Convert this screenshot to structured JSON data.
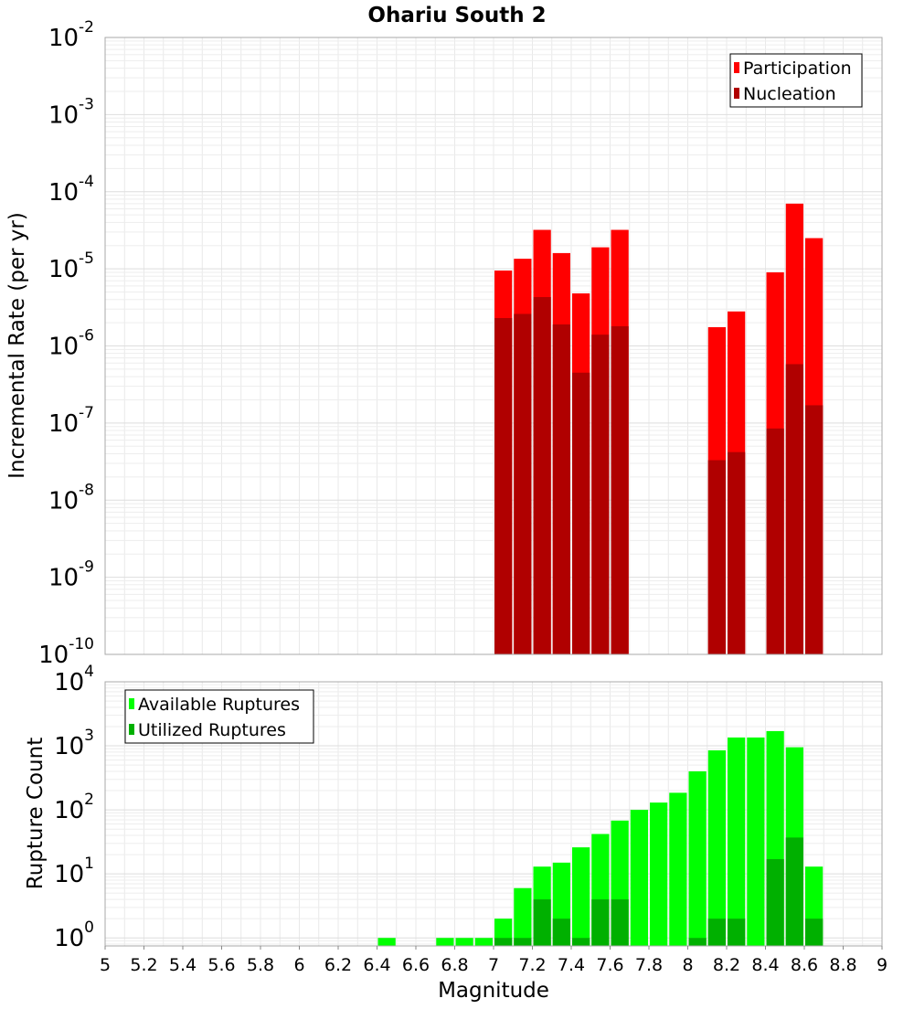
{
  "chart_data": [
    {
      "type": "bar",
      "title": "Ohariu South 2",
      "ylabel": "Incremental Rate (per yr)",
      "xlabel": "",
      "x_scale": "linear",
      "y_scale": "log",
      "xlim": [
        5,
        9
      ],
      "ylim": [
        1e-10,
        0.01
      ],
      "grid": true,
      "legend_position": "top-right",
      "y_ticks": [
        {
          "base": "10",
          "exp": "-10"
        },
        {
          "base": "10",
          "exp": "-9"
        },
        {
          "base": "10",
          "exp": "-8"
        },
        {
          "base": "10",
          "exp": "-7"
        },
        {
          "base": "10",
          "exp": "-6"
        },
        {
          "base": "10",
          "exp": "-5"
        },
        {
          "base": "10",
          "exp": "-4"
        },
        {
          "base": "10",
          "exp": "-3"
        },
        {
          "base": "10",
          "exp": "-2"
        }
      ],
      "x": [
        7.05,
        7.15,
        7.25,
        7.35,
        7.45,
        7.55,
        7.65,
        8.15,
        8.25,
        8.45,
        8.55,
        8.65
      ],
      "series": [
        {
          "name": "Participation",
          "color": "#ff0000",
          "values": [
            9.5e-06,
            1.35e-05,
            3.2e-05,
            1.6e-05,
            4.8e-06,
            1.9e-05,
            3.2e-05,
            1.75e-06,
            2.8e-06,
            9e-06,
            7e-05,
            2.5e-05
          ]
        },
        {
          "name": "Nucleation",
          "color": "#b00000",
          "values": [
            2.3e-06,
            2.6e-06,
            4.3e-06,
            1.9e-06,
            4.5e-07,
            1.4e-06,
            1.8e-06,
            3.3e-08,
            4.2e-08,
            8.5e-08,
            5.8e-07,
            1.7e-07
          ]
        }
      ]
    },
    {
      "type": "bar",
      "title": "",
      "xlabel": "Magnitude",
      "ylabel": "Rupture Count",
      "x_scale": "linear",
      "y_scale": "log",
      "xlim": [
        5,
        9
      ],
      "ylim": [
        0.75,
        10000
      ],
      "grid": true,
      "legend_position": "top-left",
      "x_ticks": [
        "5",
        "5.2",
        "5.4",
        "5.6",
        "5.8",
        "6",
        "6.2",
        "6.4",
        "6.6",
        "6.8",
        "7",
        "7.2",
        "7.4",
        "7.6",
        "7.8",
        "8",
        "8.2",
        "8.4",
        "8.6",
        "8.8",
        "9"
      ],
      "y_ticks": [
        {
          "base": "10",
          "exp": "0"
        },
        {
          "base": "10",
          "exp": "1"
        },
        {
          "base": "10",
          "exp": "2"
        },
        {
          "base": "10",
          "exp": "3"
        },
        {
          "base": "10",
          "exp": "4"
        }
      ],
      "x": [
        6.45,
        6.75,
        6.85,
        6.95,
        7.05,
        7.15,
        7.25,
        7.35,
        7.45,
        7.55,
        7.65,
        7.75,
        7.85,
        7.95,
        8.05,
        8.15,
        8.25,
        8.35,
        8.45,
        8.55,
        8.65
      ],
      "series": [
        {
          "name": "Available Ruptures",
          "color": "#00ff00",
          "values": [
            1,
            1,
            1,
            1,
            2,
            6,
            13,
            15,
            26,
            42,
            68,
            100,
            130,
            185,
            400,
            850,
            1350,
            1350,
            1700,
            950,
            13
          ]
        },
        {
          "name": "Utilized Ruptures",
          "color": "#00b000",
          "values": [
            0,
            0,
            0,
            0,
            1,
            1,
            4,
            2,
            1,
            4,
            4,
            0,
            0,
            0,
            1,
            2,
            2,
            0,
            17,
            37,
            2
          ]
        }
      ]
    }
  ]
}
